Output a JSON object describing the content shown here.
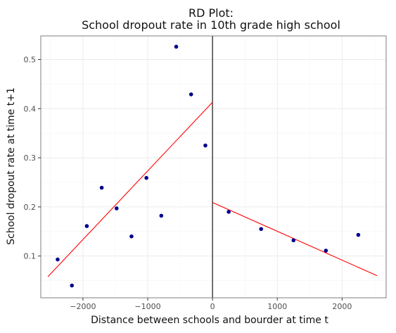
{
  "chart_data": {
    "type": "scatter",
    "title_lines": [
      "RD Plot:",
      "School dropout rate in 10th grade high school"
    ],
    "xlabel": "Distance between schools and bourder at time t",
    "ylabel": "School dropout rate at time t+1",
    "xlim": [
      -2650,
      2680
    ],
    "ylim": [
      0.015,
      0.548
    ],
    "x_ticks": [
      {
        "value": -2000,
        "label": "−2000"
      },
      {
        "value": -1000,
        "label": "−1000"
      },
      {
        "value": 0,
        "label": "0"
      },
      {
        "value": 1000,
        "label": "1000"
      },
      {
        "value": 2000,
        "label": "2000"
      }
    ],
    "y_ticks": [
      {
        "value": 0.1,
        "label": "0.1"
      },
      {
        "value": 0.2,
        "label": "0.2"
      },
      {
        "value": 0.3,
        "label": "0.3"
      },
      {
        "value": 0.4,
        "label": "0.4"
      },
      {
        "value": 0.5,
        "label": "0.5"
      }
    ],
    "grid": true,
    "cutoff_x": 0,
    "points": [
      {
        "x": -2390,
        "y": 0.093
      },
      {
        "x": -2170,
        "y": 0.04
      },
      {
        "x": -1940,
        "y": 0.161
      },
      {
        "x": -1710,
        "y": 0.239
      },
      {
        "x": -1480,
        "y": 0.197
      },
      {
        "x": -1250,
        "y": 0.14
      },
      {
        "x": -1020,
        "y": 0.259
      },
      {
        "x": -790,
        "y": 0.182
      },
      {
        "x": -560,
        "y": 0.526
      },
      {
        "x": -330,
        "y": 0.429
      },
      {
        "x": -110,
        "y": 0.325
      },
      {
        "x": 250,
        "y": 0.19
      },
      {
        "x": 750,
        "y": 0.155
      },
      {
        "x": 1250,
        "y": 0.132
      },
      {
        "x": 1750,
        "y": 0.111
      },
      {
        "x": 2250,
        "y": 0.143
      }
    ],
    "fit_lines": [
      {
        "side": "left",
        "x": [
          -2540,
          0
        ],
        "y": [
          0.058,
          0.413
        ]
      },
      {
        "side": "right",
        "x": [
          0,
          2540
        ],
        "y": [
          0.209,
          0.06
        ]
      }
    ],
    "colors": {
      "point": "#00008b",
      "fit": "#ff0000",
      "cutoff": "#000000",
      "grid_major": "#ebebeb",
      "grid_minor": "#f5f5f5",
      "panel_border": "#7f7f7f"
    }
  }
}
